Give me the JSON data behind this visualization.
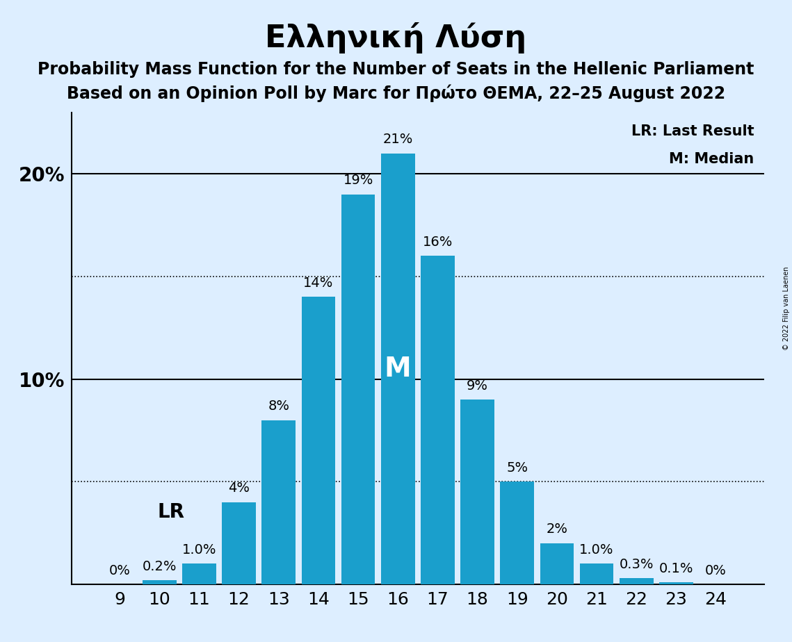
{
  "title": "Ελληνική Λύση",
  "subtitle1": "Probability Mass Function for the Number of Seats in the Hellenic Parliament",
  "subtitle2": "Based on an Opinion Poll by Marc for Πρώτο ΘΕΜΑ, 22–25 August 2022",
  "copyright": "© 2022 Filip van Laenen",
  "categories": [
    9,
    10,
    11,
    12,
    13,
    14,
    15,
    16,
    17,
    18,
    19,
    20,
    21,
    22,
    23,
    24
  ],
  "values": [
    0.0,
    0.2,
    1.0,
    4.0,
    8.0,
    14.0,
    19.0,
    21.0,
    16.0,
    9.0,
    5.0,
    2.0,
    1.0,
    0.3,
    0.1,
    0.0
  ],
  "bar_color": "#1a9fcc",
  "background_color": "#ddeeff",
  "bar_labels": [
    "0%",
    "0.2%",
    "1.0%",
    "4%",
    "8%",
    "14%",
    "19%",
    "21%",
    "16%",
    "9%",
    "5%",
    "2%",
    "1.0%",
    "0.3%",
    "0.1%",
    "0%"
  ],
  "LR_seat": 10,
  "median_seat": 16,
  "ylim": [
    0,
    23
  ],
  "yticks": [
    0,
    10,
    20
  ],
  "ytick_labels": [
    "",
    "10%",
    "20%"
  ],
  "dotted_lines": [
    5.0,
    15.0
  ],
  "solid_lines": [
    10.0,
    20.0
  ],
  "legend_lr": "LR: Last Result",
  "legend_m": "M: Median",
  "title_fontsize": 32,
  "subtitle_fontsize": 17,
  "axis_tick_fontsize": 18,
  "bar_label_fontsize": 14,
  "LR_label_fontsize": 20,
  "M_label_fontsize": 28
}
